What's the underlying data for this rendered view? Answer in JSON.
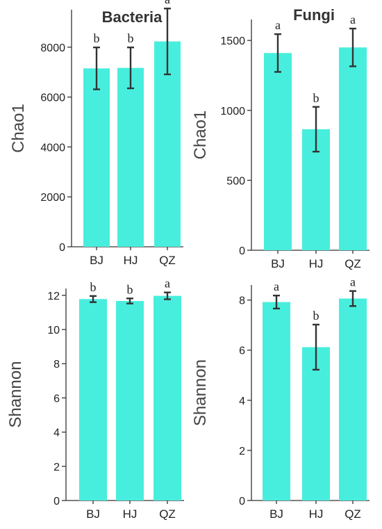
{
  "column_titles": [
    "Bacteria",
    "Fungi"
  ],
  "colors": {
    "bar": "#48EEDD",
    "axis": "#333333",
    "error": "#333333"
  },
  "chart_data": [
    {
      "type": "bar",
      "title": "Bacteria",
      "ylabel": "Chao1",
      "categories": [
        "BJ",
        "HJ",
        "QZ"
      ],
      "values": [
        7150,
        7170,
        8230
      ],
      "errors": [
        840,
        820,
        1320
      ],
      "significance": [
        "b",
        "b",
        "a"
      ],
      "ylim": [
        0,
        9500
      ],
      "yticks": [
        0,
        2000,
        4000,
        6000,
        8000
      ]
    },
    {
      "type": "bar",
      "title": "Fungi",
      "ylabel": "Chao1",
      "categories": [
        "BJ",
        "HJ",
        "QZ"
      ],
      "values": [
        1410,
        865,
        1450
      ],
      "errors": [
        135,
        160,
        135
      ],
      "significance": [
        "a",
        "b",
        "a"
      ],
      "ylim": [
        0,
        1650
      ],
      "yticks": [
        0,
        500,
        1000,
        1500
      ]
    },
    {
      "type": "bar",
      "title": "",
      "ylabel": "Shannon",
      "categories": [
        "BJ",
        "HJ",
        "QZ"
      ],
      "values": [
        11.78,
        11.67,
        11.97
      ],
      "errors": [
        0.18,
        0.15,
        0.2
      ],
      "significance": [
        "b",
        "b",
        "a"
      ],
      "ylim": [
        0,
        12.4
      ],
      "yticks": [
        0,
        2,
        4,
        6,
        8,
        10,
        12
      ]
    },
    {
      "type": "bar",
      "title": "",
      "ylabel": "Shannon",
      "categories": [
        "BJ",
        "HJ",
        "QZ"
      ],
      "values": [
        7.92,
        6.12,
        8.06
      ],
      "errors": [
        0.26,
        0.9,
        0.3
      ],
      "significance": [
        "a",
        "b",
        "a"
      ],
      "ylim": [
        0,
        8.6
      ],
      "yticks": [
        0,
        2,
        4,
        6,
        8
      ]
    }
  ]
}
